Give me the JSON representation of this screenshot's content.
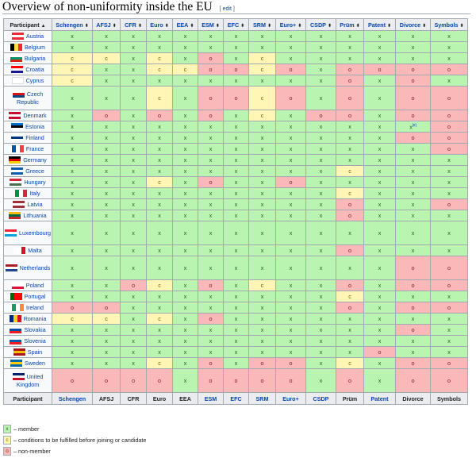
{
  "title": "Overview of non-uniformity inside the EU",
  "edit_label": "edit",
  "header": {
    "participant": "Participant",
    "columns": [
      "Schengen",
      "AFSJ",
      "CFR",
      "Euro",
      "EEA",
      "ESM",
      "EFC",
      "SRM",
      "Euro+",
      "CSDP",
      "Prüm",
      "Patent",
      "Divorce",
      "Symbols"
    ]
  },
  "rows": [
    {
      "name": "Austria",
      "flag": [
        "#ed2939",
        "#ffffff",
        "#ed2939"
      ],
      "flag_dir": "h",
      "values": [
        "x",
        "x",
        "x",
        "x",
        "x",
        "x",
        "x",
        "x",
        "x",
        "x",
        "x",
        "x",
        "x",
        "x"
      ]
    },
    {
      "name": "Belgium",
      "flag": [
        "#000000",
        "#fae042",
        "#ed2939"
      ],
      "flag_dir": "v",
      "values": [
        "x",
        "x",
        "x",
        "x",
        "x",
        "x",
        "x",
        "x",
        "x",
        "x",
        "x",
        "x",
        "x",
        "x"
      ]
    },
    {
      "name": "Bulgaria",
      "flag": [
        "#ffffff",
        "#00966e",
        "#d62612"
      ],
      "flag_dir": "h",
      "values": [
        "c",
        "c",
        "x",
        "c",
        "x",
        "o",
        "x",
        "c",
        "x",
        "x",
        "x",
        "x",
        "x",
        "x"
      ]
    },
    {
      "name": "Croatia",
      "flag": [
        "#ff0000",
        "#ffffff",
        "#171796"
      ],
      "flag_dir": "h",
      "values": [
        "c",
        "x",
        "x",
        "c",
        "c",
        "o",
        "o",
        "c",
        "o",
        "x",
        "o",
        "o",
        "o",
        "o"
      ]
    },
    {
      "name": "Cyprus",
      "flag": [
        "#ffffff",
        "#ffffff",
        "#ffffff"
      ],
      "flag_dir": "h",
      "values": [
        "c",
        "x",
        "x",
        "x",
        "x",
        "x",
        "x",
        "x",
        "x",
        "x",
        "o",
        "x",
        "o",
        "x"
      ]
    },
    {
      "name": "Czech Republic",
      "flag": [
        "#ffffff",
        "#d7141a",
        "#11457e"
      ],
      "flag_dir": "h",
      "tall": true,
      "values": [
        "x",
        "x",
        "x",
        "c",
        "x",
        "o",
        "o",
        "c",
        "o",
        "x",
        "o",
        "x",
        "o",
        "o"
      ]
    },
    {
      "name": "Denmark",
      "flag": [
        "#c60c30",
        "#ffffff",
        "#c60c30"
      ],
      "flag_dir": "h",
      "values": [
        "x",
        "o",
        "x",
        "o",
        "x",
        "o",
        "x",
        "c",
        "x",
        "o",
        "o",
        "x",
        "o",
        "o"
      ]
    },
    {
      "name": "Estonia",
      "flag": [
        "#0072ce",
        "#000000",
        "#ffffff"
      ],
      "flag_dir": "h",
      "values": [
        "x",
        "x",
        "x",
        "x",
        "x",
        "x",
        "x",
        "x",
        "x",
        "x",
        "x",
        "x",
        "x[9]",
        "o"
      ]
    },
    {
      "name": "Finland",
      "flag": [
        "#ffffff",
        "#003580",
        "#ffffff"
      ],
      "flag_dir": "h",
      "values": [
        "x",
        "x",
        "x",
        "x",
        "x",
        "x",
        "x",
        "x",
        "x",
        "x",
        "x",
        "x",
        "o",
        "o"
      ]
    },
    {
      "name": "France",
      "flag": [
        "#0055a4",
        "#ffffff",
        "#ef4135"
      ],
      "flag_dir": "v",
      "values": [
        "x",
        "x",
        "x",
        "x",
        "x",
        "x",
        "x",
        "x",
        "x",
        "x",
        "x",
        "x",
        "x",
        "o"
      ]
    },
    {
      "name": "Germany",
      "flag": [
        "#000000",
        "#dd0000",
        "#ffce00"
      ],
      "flag_dir": "h",
      "values": [
        "x",
        "x",
        "x",
        "x",
        "x",
        "x",
        "x",
        "x",
        "x",
        "x",
        "x",
        "x",
        "x",
        "x"
      ]
    },
    {
      "name": "Greece",
      "flag": [
        "#0d5eaf",
        "#ffffff",
        "#0d5eaf"
      ],
      "flag_dir": "h",
      "values": [
        "x",
        "x",
        "x",
        "x",
        "x",
        "x",
        "x",
        "x",
        "x",
        "x",
        "c",
        "x",
        "x",
        "x"
      ]
    },
    {
      "name": "Hungary",
      "flag": [
        "#ce2939",
        "#ffffff",
        "#477050"
      ],
      "flag_dir": "h",
      "values": [
        "x",
        "x",
        "x",
        "c",
        "x",
        "o",
        "x",
        "x",
        "o",
        "x",
        "x",
        "x",
        "x",
        "x"
      ]
    },
    {
      "name": "Italy",
      "flag": [
        "#009246",
        "#ffffff",
        "#ce2b37"
      ],
      "flag_dir": "v",
      "values": [
        "x",
        "x",
        "x",
        "x",
        "x",
        "x",
        "x",
        "x",
        "x",
        "x",
        "c",
        "x",
        "x",
        "x"
      ]
    },
    {
      "name": "Latvia",
      "flag": [
        "#9e3039",
        "#ffffff",
        "#9e3039"
      ],
      "flag_dir": "h",
      "values": [
        "x",
        "x",
        "x",
        "x",
        "x",
        "x",
        "x",
        "x",
        "x",
        "x",
        "o",
        "x",
        "x",
        "o"
      ]
    },
    {
      "name": "Lithuania",
      "flag": [
        "#fdb913",
        "#006a44",
        "#c1272d"
      ],
      "flag_dir": "h",
      "values": [
        "x",
        "x",
        "x",
        "x",
        "x",
        "x",
        "x",
        "x",
        "x",
        "x",
        "o",
        "x",
        "x",
        "x"
      ]
    },
    {
      "name": "Luxembourg",
      "flag": [
        "#ed2939",
        "#ffffff",
        "#00a1de"
      ],
      "flag_dir": "h",
      "tall": true,
      "values": [
        "x",
        "x",
        "x",
        "x",
        "x",
        "x",
        "x",
        "x",
        "x",
        "x",
        "x",
        "x",
        "x",
        "x"
      ]
    },
    {
      "name": "Malta",
      "flag": [
        "#ffffff",
        "#ffffff",
        "#cf142b"
      ],
      "flag_dir": "v",
      "values": [
        "x",
        "x",
        "x",
        "x",
        "x",
        "x",
        "x",
        "x",
        "x",
        "x",
        "o",
        "x",
        "x",
        "x"
      ]
    },
    {
      "name": "Netherlands",
      "flag": [
        "#ae1c28",
        "#ffffff",
        "#21468b"
      ],
      "flag_dir": "h",
      "tall": true,
      "values": [
        "x",
        "x",
        "x",
        "x",
        "x",
        "x",
        "x",
        "x",
        "x",
        "x",
        "x",
        "x",
        "o",
        "o"
      ]
    },
    {
      "name": "Poland",
      "flag": [
        "#ffffff",
        "#ffffff",
        "#dc143c"
      ],
      "flag_dir": "h",
      "values": [
        "x",
        "x",
        "o",
        "c",
        "x",
        "o",
        "x",
        "c",
        "x",
        "x",
        "o",
        "x",
        "o",
        "o"
      ]
    },
    {
      "name": "Portugal",
      "flag": [
        "#006600",
        "#ff0000",
        "#ff0000"
      ],
      "flag_dir": "v",
      "values": [
        "x",
        "x",
        "x",
        "x",
        "x",
        "x",
        "x",
        "x",
        "x",
        "x",
        "c",
        "x",
        "x",
        "x"
      ]
    },
    {
      "name": "Ireland",
      "flag": [
        "#169b62",
        "#ffffff",
        "#ff883e"
      ],
      "flag_dir": "v",
      "values": [
        "o",
        "o",
        "x",
        "x",
        "x",
        "x",
        "x",
        "x",
        "x",
        "x",
        "o",
        "x",
        "o",
        "o"
      ]
    },
    {
      "name": "Romania",
      "flag": [
        "#002b7f",
        "#fcd116",
        "#ce1126"
      ],
      "flag_dir": "v",
      "values": [
        "c",
        "c",
        "x",
        "c",
        "x",
        "o",
        "x",
        "x",
        "x",
        "x",
        "x",
        "x",
        "x",
        "x"
      ]
    },
    {
      "name": "Slovakia",
      "flag": [
        "#ffffff",
        "#0b4ea2",
        "#ee1c25"
      ],
      "flag_dir": "h",
      "values": [
        "x",
        "x",
        "x",
        "x",
        "x",
        "x",
        "x",
        "x",
        "x",
        "x",
        "x",
        "x",
        "o",
        "x"
      ]
    },
    {
      "name": "Slovenia",
      "flag": [
        "#ffffff",
        "#005da4",
        "#ed1c24"
      ],
      "flag_dir": "h",
      "values": [
        "x",
        "x",
        "x",
        "x",
        "x",
        "x",
        "x",
        "x",
        "x",
        "x",
        "x",
        "x",
        "x",
        "x"
      ]
    },
    {
      "name": "Spain",
      "flag": [
        "#aa151b",
        "#f1bf00",
        "#aa151b"
      ],
      "flag_dir": "h",
      "values": [
        "x",
        "x",
        "x",
        "x",
        "x",
        "x",
        "x",
        "x",
        "x",
        "x",
        "x",
        "o",
        "x",
        "x"
      ]
    },
    {
      "name": "Sweden",
      "flag": [
        "#006aa7",
        "#fecc00",
        "#006aa7"
      ],
      "flag_dir": "h",
      "values": [
        "x",
        "x",
        "x",
        "c",
        "x",
        "o",
        "x",
        "o",
        "o",
        "x",
        "c",
        "x",
        "o",
        "o"
      ]
    },
    {
      "name": "United Kingdom",
      "flag": [
        "#012169",
        "#ffffff",
        "#c8102e"
      ],
      "flag_dir": "h",
      "tall": true,
      "values": [
        "o",
        "o",
        "o",
        "o",
        "x",
        "o",
        "o",
        "o",
        "o",
        "x",
        "o",
        "x",
        "o",
        "o"
      ]
    }
  ],
  "legend": [
    {
      "key": "x",
      "label": "– member"
    },
    {
      "key": "c",
      "label": "– conditions to be fulfilled before joining or candidate"
    },
    {
      "key": "o",
      "label": "– non-member"
    }
  ],
  "colors": {
    "member": "#b9f5b0",
    "condition": "#fff6b5",
    "non_member": "#fbb8b8",
    "header_bg": "#eaecf0",
    "link": "#0645ad"
  }
}
